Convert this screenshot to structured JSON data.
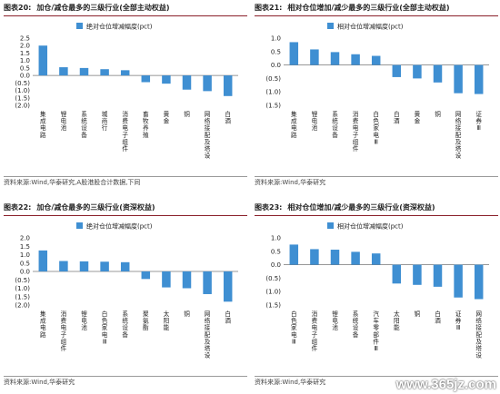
{
  "chart_data": [
    {
      "type": "bar",
      "figure_label": "图表20:",
      "title": "加仓/减仓最多的三级行业(全部主动权益)",
      "legend": "绝对仓位增减幅度(pct)",
      "legend_position": "top",
      "categories": [
        "集成电路",
        "锂电池",
        "系统设备",
        "城商行",
        "消费电子组件",
        "畜牧养殖",
        "黄金",
        "铜",
        "网络接配及塔设",
        "白酒"
      ],
      "values": [
        2.0,
        0.55,
        0.5,
        0.42,
        0.35,
        -0.45,
        -0.55,
        -0.95,
        -1.05,
        -1.38
      ],
      "ylim": [
        -2.0,
        2.5
      ],
      "yticks": [
        "2.5",
        "2.0",
        "1.5",
        "1.0",
        "0.5",
        "0.0",
        "(0.5)",
        "(1.0)",
        "(1.5)",
        "(2.0)"
      ],
      "color": "#3f8fd2",
      "source": "资料来源:Wind,华泰研究,A股港股合计数据,下同"
    },
    {
      "type": "bar",
      "figure_label": "图表21:",
      "title": "相对仓位增加/减少最多的三级行业(全部主动权益)",
      "legend": "相对仓位增减幅度(pct)",
      "legend_position": "top",
      "categories": [
        "集成电路",
        "锂电池",
        "系统设备",
        "消费电子组件",
        "白色家电Ⅲ",
        "白酒",
        "黄金",
        "铜",
        "网络接配及塔设",
        "证券Ⅲ"
      ],
      "values": [
        0.85,
        0.58,
        0.48,
        0.4,
        0.34,
        -0.45,
        -0.5,
        -0.65,
        -1.05,
        -1.08
      ],
      "ylim": [
        -1.5,
        1.0
      ],
      "yticks": [
        "1.0",
        "0.5",
        "0.0",
        "(0.5)",
        "(1.0)",
        "(1.5)"
      ],
      "color": "#3f8fd2",
      "source": "资料来源:Wind,华泰研究"
    },
    {
      "type": "bar",
      "figure_label": "图表22:",
      "title": "加仓/减仓最多的三级行业(资深权益)",
      "legend": "绝对仓位增减幅度(pct)",
      "legend_position": "top",
      "categories": [
        "集成电路",
        "消费电子组件",
        "锂电池",
        "白色家电Ⅲ",
        "系统设备",
        "聚氨酯",
        "太阳能",
        "铜",
        "网络接配及塔设",
        "白酒"
      ],
      "values": [
        1.25,
        0.62,
        0.6,
        0.58,
        0.55,
        -0.45,
        -0.95,
        -1.0,
        -1.35,
        -1.8
      ],
      "ylim": [
        -2.0,
        2.0
      ],
      "yticks": [
        "2.0",
        "1.5",
        "1.0",
        "0.5",
        "0.0",
        "(0.5)",
        "(1.0)",
        "(1.5)",
        "(2.0)"
      ],
      "color": "#3f8fd2",
      "source": "资料来源:Wind,华泰研究"
    },
    {
      "type": "bar",
      "figure_label": "图表23:",
      "title": "相对仓位增加/减少最多的三级行业(资深权益)",
      "legend": "相对仓位增减幅度(pct)",
      "legend_position": "top",
      "categories": [
        "白色家电Ⅲ",
        "消费电子组件",
        "锂电池",
        "系统设备",
        "汽车零部件Ⅲ",
        "太阳能",
        "铜",
        "白酒",
        "证券Ⅲ",
        "网络接配及塔设"
      ],
      "values": [
        0.75,
        0.58,
        0.56,
        0.48,
        0.42,
        -0.7,
        -0.75,
        -0.82,
        -1.22,
        -1.28
      ],
      "ylim": [
        -1.5,
        1.0
      ],
      "yticks": [
        "1.0",
        "0.5",
        "0.0",
        "(0.5)",
        "(1.0)",
        "(1.5)"
      ],
      "color": "#3f8fd2",
      "source": "资料来源:Wind,华泰研究"
    }
  ],
  "watermark": "www.365jz.com"
}
